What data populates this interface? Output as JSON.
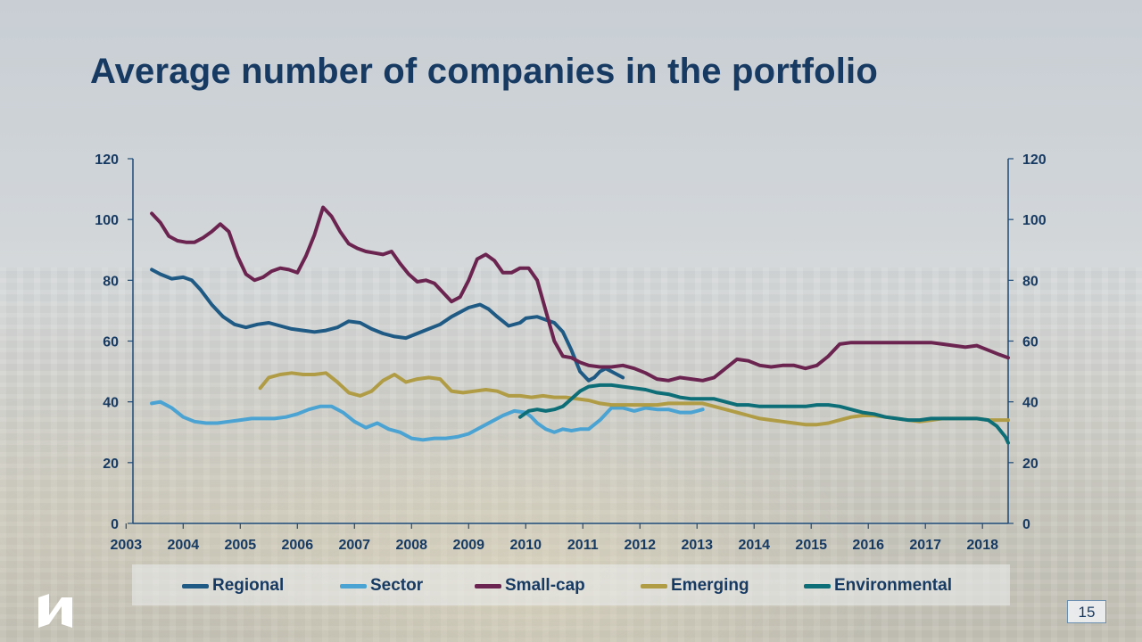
{
  "slide": {
    "title": "Average number of companies in the portfolio",
    "page_number": "15"
  },
  "legend": {
    "items": [
      {
        "label": "Regional",
        "color": "#1f5a85"
      },
      {
        "label": "Sector",
        "color": "#4aa3d2"
      },
      {
        "label": "Small-cap",
        "color": "#6b2450"
      },
      {
        "label": "Emerging",
        "color": "#b09c44"
      },
      {
        "label": "Environmental",
        "color": "#0d6e78"
      }
    ]
  },
  "logo": {
    "icon": "company-logo-icon"
  },
  "chart_data": {
    "type": "line",
    "title": "Average number of companies in the portfolio",
    "xlabel": "",
    "ylabel": "",
    "xlim": [
      2003,
      2018.45
    ],
    "ylim": [
      0,
      120
    ],
    "x_ticks": [
      "2003",
      "2004",
      "2005",
      "2006",
      "2007",
      "2008",
      "2009",
      "2010",
      "2011",
      "2012",
      "2013",
      "2014",
      "2015",
      "2016",
      "2017",
      "2018"
    ],
    "y_ticks": [
      "0",
      "20",
      "40",
      "60",
      "80",
      "100",
      "120"
    ],
    "y_ticks_right": [
      "0",
      "20",
      "40",
      "60",
      "80",
      "100",
      "120"
    ],
    "legend_position": "bottom",
    "grid": false,
    "series": [
      {
        "name": "Regional",
        "color": "#1f5a85",
        "x": [
          2003.45,
          2003.6,
          2003.8,
          2004.0,
          2004.15,
          2004.3,
          2004.5,
          2004.7,
          2004.9,
          2005.1,
          2005.3,
          2005.5,
          2005.7,
          2005.9,
          2006.1,
          2006.3,
          2006.5,
          2006.7,
          2006.9,
          2007.1,
          2007.3,
          2007.5,
          2007.7,
          2007.9,
          2008.1,
          2008.3,
          2008.5,
          2008.7,
          2008.9,
          2009.0,
          2009.2,
          2009.35,
          2009.5,
          2009.7,
          2009.9,
          2010.0,
          2010.2,
          2010.35,
          2010.5,
          2010.65,
          2010.8,
          2010.95,
          2011.1,
          2011.2,
          2011.3,
          2011.4,
          2011.5,
          2011.6,
          2011.7
        ],
        "y": [
          83.5,
          82,
          80.5,
          81,
          80,
          77,
          72,
          68,
          65.5,
          64.5,
          65.5,
          66,
          65,
          64,
          63.5,
          63,
          63.5,
          64.5,
          66.5,
          66,
          64,
          62.5,
          61.5,
          61,
          62.5,
          64,
          65.5,
          68,
          70,
          71,
          72,
          70.5,
          68,
          65,
          66,
          67.5,
          68,
          67,
          66,
          63,
          57,
          50,
          47,
          48,
          50,
          51,
          50,
          49,
          48
        ]
      },
      {
        "name": "Sector",
        "color": "#4aa3d2",
        "x": [
          2003.45,
          2003.6,
          2003.8,
          2004.0,
          2004.2,
          2004.4,
          2004.6,
          2004.8,
          2005.0,
          2005.2,
          2005.4,
          2005.6,
          2005.8,
          2006.0,
          2006.2,
          2006.4,
          2006.6,
          2006.8,
          2007.0,
          2007.2,
          2007.4,
          2007.6,
          2007.8,
          2008.0,
          2008.2,
          2008.4,
          2008.6,
          2008.8,
          2009.0,
          2009.2,
          2009.4,
          2009.6,
          2009.8,
          2010.0,
          2010.1,
          2010.2,
          2010.35,
          2010.5,
          2010.65,
          2010.8,
          2010.95,
          2011.1,
          2011.3,
          2011.5,
          2011.7,
          2011.9,
          2012.1,
          2012.3,
          2012.5,
          2012.7,
          2012.9,
          2013.0,
          2013.1
        ],
        "y": [
          39.5,
          40,
          38,
          35,
          33.5,
          33,
          33,
          33.5,
          34,
          34.5,
          34.5,
          34.5,
          35,
          36,
          37.5,
          38.5,
          38.5,
          36.5,
          33.5,
          31.5,
          33,
          31,
          30,
          28,
          27.5,
          28,
          28,
          28.5,
          29.5,
          31.5,
          33.5,
          35.5,
          37,
          36.5,
          35,
          33,
          31,
          30,
          31,
          30.5,
          31,
          31,
          34,
          38,
          38,
          37,
          38,
          37.5,
          37.5,
          36.5,
          36.5,
          37,
          37.5
        ]
      },
      {
        "name": "Small-cap",
        "color": "#6b2450",
        "x": [
          2003.45,
          2003.6,
          2003.75,
          2003.9,
          2004.05,
          2004.2,
          2004.35,
          2004.5,
          2004.65,
          2004.8,
          2004.95,
          2005.1,
          2005.25,
          2005.4,
          2005.55,
          2005.7,
          2005.85,
          2006.0,
          2006.15,
          2006.3,
          2006.45,
          2006.6,
          2006.75,
          2006.9,
          2007.05,
          2007.2,
          2007.35,
          2007.5,
          2007.65,
          2007.8,
          2007.95,
          2008.1,
          2008.25,
          2008.4,
          2008.55,
          2008.7,
          2008.85,
          2009.0,
          2009.15,
          2009.3,
          2009.45,
          2009.6,
          2009.75,
          2009.9,
          2010.05,
          2010.2,
          2010.35,
          2010.5,
          2010.65,
          2010.8,
          2010.95,
          2011.1,
          2011.3,
          2011.5,
          2011.7,
          2011.9,
          2012.1,
          2012.3,
          2012.5,
          2012.7,
          2012.9,
          2013.1,
          2013.3,
          2013.5,
          2013.7,
          2013.9,
          2014.1,
          2014.3,
          2014.5,
          2014.7,
          2014.9,
          2015.1,
          2015.3,
          2015.5,
          2015.7,
          2015.9,
          2016.1,
          2016.3,
          2016.5,
          2016.7,
          2016.9,
          2017.1,
          2017.3,
          2017.5,
          2017.7,
          2017.9,
          2018.1,
          2018.3,
          2018.45
        ],
        "y": [
          102,
          99,
          94.5,
          93,
          92.5,
          92.5,
          94,
          96,
          98.5,
          96,
          88,
          82,
          80,
          81,
          83,
          84,
          83.5,
          82.5,
          88,
          95,
          104,
          101,
          96,
          92,
          90.5,
          89.5,
          89,
          88.5,
          89.5,
          85.5,
          82,
          79.5,
          80,
          79,
          76,
          73,
          74.5,
          80,
          87,
          88.5,
          86.5,
          82.5,
          82.5,
          84,
          84,
          80,
          70,
          60,
          55,
          54.5,
          53,
          52,
          51.5,
          51.5,
          52,
          51,
          49.5,
          47.5,
          47,
          48,
          47.5,
          47,
          48,
          51,
          54,
          53.5,
          52,
          51.5,
          52,
          52,
          51,
          52,
          55,
          59,
          59.5,
          59.5,
          59.5,
          59.5,
          59.5,
          59.5,
          59.5,
          59.5,
          59,
          58.5,
          58,
          58.5,
          57,
          55.5,
          54.5
        ]
      },
      {
        "name": "Emerging",
        "color": "#b09c44",
        "x": [
          2005.35,
          2005.5,
          2005.7,
          2005.9,
          2006.1,
          2006.3,
          2006.5,
          2006.7,
          2006.9,
          2007.1,
          2007.3,
          2007.5,
          2007.7,
          2007.9,
          2008.1,
          2008.3,
          2008.5,
          2008.7,
          2008.9,
          2009.1,
          2009.3,
          2009.5,
          2009.7,
          2009.9,
          2010.1,
          2010.3,
          2010.5,
          2010.7,
          2010.9,
          2011.1,
          2011.3,
          2011.5,
          2011.7,
          2011.9,
          2012.1,
          2012.3,
          2012.5,
          2012.7,
          2012.9,
          2013.1,
          2013.3,
          2013.5,
          2013.7,
          2013.9,
          2014.1,
          2014.3,
          2014.5,
          2014.7,
          2014.9,
          2015.1,
          2015.3,
          2015.5,
          2015.7,
          2015.9,
          2016.1,
          2016.3,
          2016.5,
          2016.7,
          2016.9,
          2017.1,
          2017.3,
          2017.5,
          2017.7,
          2017.9,
          2018.1,
          2018.3,
          2018.45
        ],
        "y": [
          44.5,
          48,
          49,
          49.5,
          49,
          49,
          49.5,
          46.5,
          43,
          42,
          43.5,
          47,
          49,
          46.5,
          47.5,
          48,
          47.5,
          43.5,
          43,
          43.5,
          44,
          43.5,
          42,
          42,
          41.5,
          42,
          41.5,
          41.5,
          41,
          40.5,
          39.5,
          39,
          39,
          39,
          39,
          39,
          39.5,
          39.5,
          39.5,
          39.5,
          38.5,
          37.5,
          36.5,
          35.5,
          34.5,
          34,
          33.5,
          33,
          32.5,
          32.5,
          33,
          34,
          35,
          35.5,
          35.5,
          35,
          34.5,
          34,
          33.5,
          34,
          34.5,
          34.5,
          34.5,
          34.5,
          34,
          34,
          34
        ]
      },
      {
        "name": "Environmental",
        "color": "#0d6e78",
        "x": [
          2009.9,
          2010.05,
          2010.2,
          2010.35,
          2010.5,
          2010.65,
          2010.8,
          2010.95,
          2011.1,
          2011.3,
          2011.5,
          2011.7,
          2011.9,
          2012.1,
          2012.3,
          2012.5,
          2012.7,
          2012.9,
          2013.1,
          2013.3,
          2013.5,
          2013.7,
          2013.9,
          2014.1,
          2014.3,
          2014.5,
          2014.7,
          2014.9,
          2015.1,
          2015.3,
          2015.5,
          2015.7,
          2015.9,
          2016.1,
          2016.3,
          2016.5,
          2016.7,
          2016.9,
          2017.1,
          2017.3,
          2017.5,
          2017.7,
          2017.9,
          2018.1,
          2018.25,
          2018.4,
          2018.45
        ],
        "y": [
          35,
          37,
          37.5,
          37,
          37.5,
          38.5,
          41,
          43.5,
          45,
          45.5,
          45.5,
          45,
          44.5,
          44,
          43,
          42.5,
          41.5,
          41,
          41,
          41,
          40,
          39,
          39,
          38.5,
          38.5,
          38.5,
          38.5,
          38.5,
          39,
          39,
          38.5,
          37.5,
          36.5,
          36,
          35,
          34.5,
          34,
          34,
          34.5,
          34.5,
          34.5,
          34.5,
          34.5,
          34,
          32,
          28.5,
          26.5
        ]
      }
    ]
  }
}
